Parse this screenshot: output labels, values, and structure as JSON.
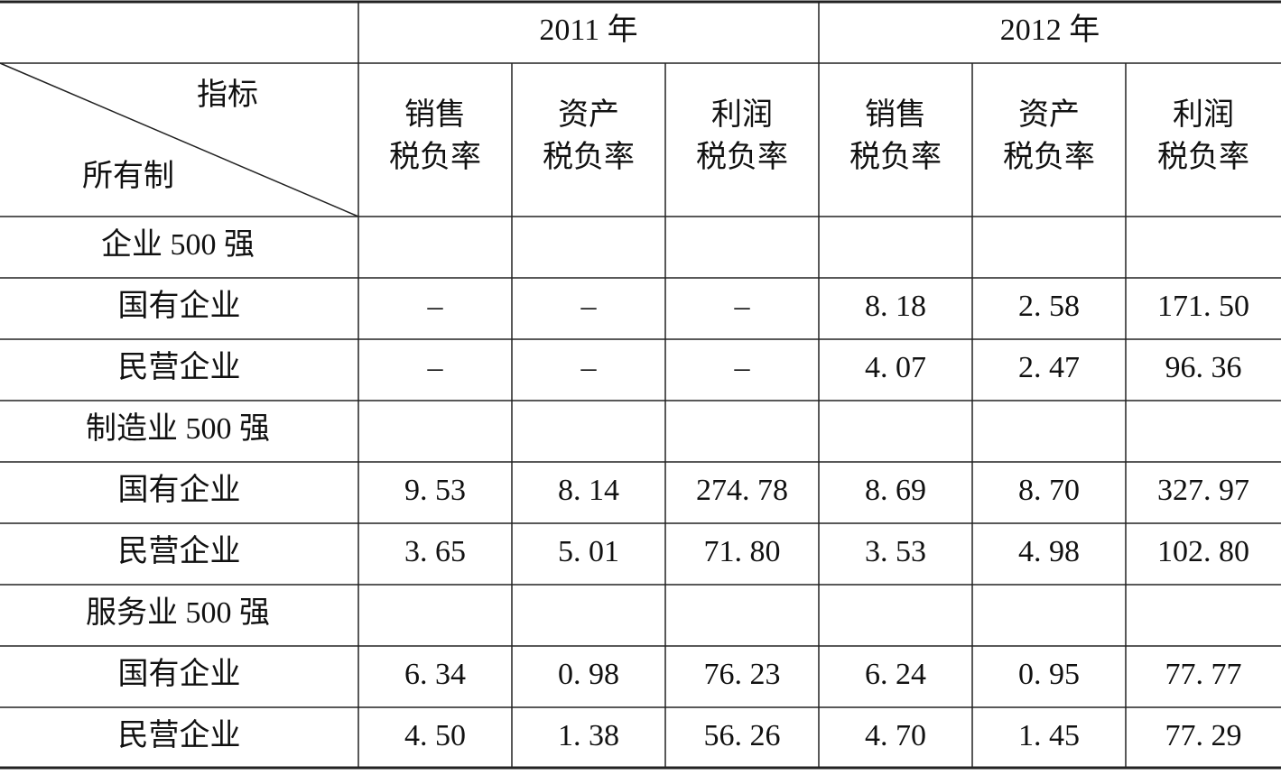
{
  "table": {
    "corner": {
      "top": "指标",
      "bottom": "所有制"
    },
    "years": [
      "2011 年",
      "2012 年"
    ],
    "columns": [
      [
        "销售",
        "税负率"
      ],
      [
        "资产",
        "税负率"
      ],
      [
        "利润",
        "税负率"
      ],
      [
        "销售",
        "税负率"
      ],
      [
        "资产",
        "税负率"
      ],
      [
        "利润",
        "税负率"
      ]
    ],
    "groups": [
      {
        "label": "企业 500 强",
        "rows": [
          [
            "国有企业",
            "–",
            "–",
            "–",
            "8. 18",
            "2. 58",
            "171. 50"
          ],
          [
            "民营企业",
            "–",
            "–",
            "–",
            "4. 07",
            "2. 47",
            "96. 36"
          ]
        ]
      },
      {
        "label": "制造业 500 强",
        "rows": [
          [
            "国有企业",
            "9. 53",
            "8. 14",
            "274. 78",
            "8. 69",
            "8. 70",
            "327. 97"
          ],
          [
            "民营企业",
            "3. 65",
            "5. 01",
            "71. 80",
            "3. 53",
            "4. 98",
            "102. 80"
          ]
        ]
      },
      {
        "label": "服务业 500 强",
        "rows": [
          [
            "国有企业",
            "6. 34",
            "0. 98",
            "76. 23",
            "6. 24",
            "0. 95",
            "77. 77"
          ],
          [
            "民营企业",
            "4. 50",
            "1. 38",
            "56. 26",
            "4. 70",
            "1. 45",
            "77. 29"
          ]
        ]
      }
    ]
  }
}
